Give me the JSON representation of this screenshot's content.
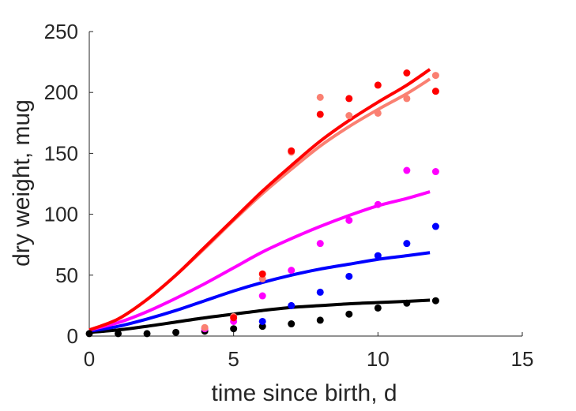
{
  "chart_data": {
    "type": "scatter",
    "xlabel": "time since birth, d",
    "ylabel": "dry weight, mug",
    "xlim": [
      0,
      15
    ],
    "ylim": [
      0,
      250
    ],
    "xticks": [
      "0",
      "5",
      "10",
      "15"
    ],
    "yticks": [
      "0",
      "50",
      "100",
      "150",
      "200",
      "250"
    ],
    "grid": false,
    "legend": "none",
    "series": [
      {
        "color": "#000000",
        "points": [
          [
            0,
            2
          ],
          [
            1,
            2
          ],
          [
            2,
            2
          ],
          [
            3,
            3
          ],
          [
            4,
            4
          ],
          [
            5,
            6
          ],
          [
            6,
            8
          ],
          [
            7,
            10
          ],
          [
            8,
            13
          ],
          [
            9,
            18
          ],
          [
            10,
            23
          ],
          [
            11,
            27
          ],
          [
            12,
            29
          ]
        ],
        "curve": [
          [
            0,
            3
          ],
          [
            1,
            5
          ],
          [
            2,
            8
          ],
          [
            3,
            11.5
          ],
          [
            4,
            15
          ],
          [
            5,
            18
          ],
          [
            6,
            21
          ],
          [
            7,
            23.5
          ],
          [
            8,
            25
          ],
          [
            9,
            26.5
          ],
          [
            10,
            27.5
          ],
          [
            11,
            28.5
          ],
          [
            11.8,
            29.5
          ]
        ]
      },
      {
        "color": "#0000ff",
        "points": [
          [
            6,
            12
          ],
          [
            7,
            25
          ],
          [
            8,
            36
          ],
          [
            9,
            49
          ],
          [
            10,
            66
          ],
          [
            11,
            76
          ],
          [
            12,
            90
          ]
        ],
        "curve": [
          [
            0,
            4
          ],
          [
            1,
            8
          ],
          [
            2,
            14
          ],
          [
            3,
            21
          ],
          [
            4,
            29
          ],
          [
            5,
            37
          ],
          [
            6,
            44
          ],
          [
            7,
            50
          ],
          [
            8,
            55
          ],
          [
            9,
            59
          ],
          [
            10,
            63
          ],
          [
            11,
            66
          ],
          [
            11.8,
            68.5
          ]
        ]
      },
      {
        "color": "#ff00ff",
        "points": [
          [
            4,
            6
          ],
          [
            5,
            12
          ],
          [
            6,
            33
          ],
          [
            7,
            54
          ],
          [
            8,
            76
          ],
          [
            9,
            95
          ],
          [
            10,
            108
          ],
          [
            11,
            136
          ],
          [
            12,
            135
          ]
        ],
        "curve": [
          [
            0,
            5
          ],
          [
            1,
            11
          ],
          [
            2,
            20
          ],
          [
            3,
            31
          ],
          [
            4,
            43
          ],
          [
            5,
            56
          ],
          [
            6,
            69
          ],
          [
            7,
            80
          ],
          [
            8,
            90
          ],
          [
            9,
            99
          ],
          [
            10,
            107
          ],
          [
            11,
            113
          ],
          [
            11.8,
            118.5
          ]
        ]
      },
      {
        "color": "#fa8072",
        "points": [
          [
            4,
            7
          ],
          [
            5,
            16
          ],
          [
            6,
            47
          ],
          [
            7,
            151
          ],
          [
            8,
            196
          ],
          [
            9,
            181
          ],
          [
            10,
            183
          ],
          [
            11,
            195
          ],
          [
            12,
            214
          ]
        ],
        "curve": [
          [
            0,
            5
          ],
          [
            1,
            14
          ],
          [
            2,
            30
          ],
          [
            3,
            50
          ],
          [
            4,
            72
          ],
          [
            5,
            95
          ],
          [
            6,
            117
          ],
          [
            7,
            137
          ],
          [
            8,
            156
          ],
          [
            9,
            172
          ],
          [
            10,
            186
          ],
          [
            11,
            199
          ],
          [
            11.8,
            211
          ]
        ]
      },
      {
        "color": "#ff0000",
        "points": [
          [
            5,
            15
          ],
          [
            6,
            51
          ],
          [
            7,
            152
          ],
          [
            8,
            182
          ],
          [
            9,
            195
          ],
          [
            10,
            206
          ],
          [
            11,
            216
          ],
          [
            12,
            201
          ]
        ],
        "curve": [
          [
            0,
            5
          ],
          [
            1,
            14
          ],
          [
            2,
            30
          ],
          [
            3,
            50
          ],
          [
            4,
            73
          ],
          [
            5,
            96
          ],
          [
            6,
            119
          ],
          [
            7,
            140
          ],
          [
            8,
            160
          ],
          [
            9,
            177
          ],
          [
            10,
            192
          ],
          [
            11,
            206
          ],
          [
            11.8,
            219
          ]
        ]
      }
    ]
  }
}
